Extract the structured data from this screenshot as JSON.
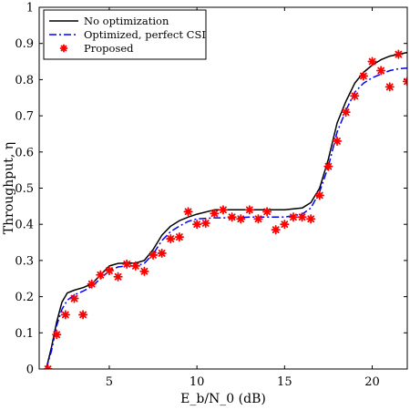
{
  "chart_data": {
    "type": "line",
    "title": "",
    "xlabel": "E_b/N_0 (dB)",
    "ylabel": "Throughput, η",
    "xlim": [
      1,
      22
    ],
    "ylim": [
      0,
      1
    ],
    "x_ticks": [
      5,
      10,
      15,
      20
    ],
    "y_ticks": [
      0,
      0.1,
      0.2,
      0.3,
      0.4,
      0.5,
      0.6,
      0.7,
      0.8,
      0.9,
      1
    ],
    "legend_position": "top-left",
    "grid": false,
    "series": [
      {
        "name": "No optimization",
        "style": "solid",
        "color": "#000000",
        "x": [
          1.4,
          1.7,
          2.0,
          2.3,
          2.6,
          3.0,
          3.5,
          4.0,
          4.5,
          5.0,
          5.5,
          6.0,
          6.5,
          7.0,
          7.5,
          8.0,
          8.5,
          9.0,
          9.5,
          10.0,
          11.0,
          12.0,
          13.0,
          14.0,
          15.0,
          16.0,
          16.5,
          17.0,
          17.5,
          18.0,
          18.5,
          19.0,
          19.5,
          20.0,
          20.5,
          21.0,
          21.5,
          22.0
        ],
        "y": [
          0.0,
          0.06,
          0.13,
          0.185,
          0.21,
          0.218,
          0.225,
          0.235,
          0.26,
          0.285,
          0.292,
          0.293,
          0.293,
          0.3,
          0.33,
          0.37,
          0.395,
          0.41,
          0.42,
          0.428,
          0.44,
          0.44,
          0.44,
          0.44,
          0.44,
          0.445,
          0.46,
          0.5,
          0.58,
          0.68,
          0.74,
          0.79,
          0.82,
          0.84,
          0.855,
          0.865,
          0.87,
          0.875
        ]
      },
      {
        "name": "Optimized, perfect CSI",
        "style": "dashdot",
        "color": "#0000ff",
        "x": [
          1.4,
          1.7,
          2.0,
          2.3,
          2.6,
          3.0,
          3.5,
          4.0,
          4.5,
          5.0,
          5.5,
          6.0,
          6.5,
          7.0,
          7.5,
          8.0,
          8.5,
          9.0,
          9.5,
          10.0,
          11.0,
          12.0,
          13.0,
          14.0,
          15.0,
          16.0,
          16.5,
          17.0,
          17.5,
          18.0,
          18.5,
          19.0,
          19.5,
          20.0,
          20.5,
          21.0,
          21.5,
          22.0
        ],
        "y": [
          0.0,
          0.05,
          0.12,
          0.165,
          0.19,
          0.205,
          0.215,
          0.228,
          0.25,
          0.272,
          0.282,
          0.285,
          0.285,
          0.292,
          0.318,
          0.355,
          0.38,
          0.395,
          0.408,
          0.415,
          0.418,
          0.418,
          0.42,
          0.42,
          0.42,
          0.428,
          0.445,
          0.49,
          0.56,
          0.655,
          0.715,
          0.765,
          0.79,
          0.805,
          0.815,
          0.825,
          0.83,
          0.832
        ]
      },
      {
        "name": "Proposed",
        "style": "markers",
        "color": "#ff0000",
        "x": [
          1.5,
          2.0,
          2.5,
          3.0,
          3.5,
          4.0,
          4.5,
          5.0,
          5.5,
          6.0,
          6.5,
          7.0,
          7.5,
          8.0,
          8.5,
          9.0,
          9.5,
          10.0,
          10.5,
          11.0,
          11.5,
          12.0,
          12.5,
          13.0,
          13.5,
          14.0,
          14.5,
          15.0,
          15.5,
          16.0,
          16.5,
          17.0,
          17.5,
          18.0,
          18.5,
          19.0,
          19.5,
          20.0,
          20.5,
          21.0,
          21.5,
          22.0
        ],
        "y": [
          0.0,
          0.095,
          0.15,
          0.195,
          0.15,
          0.235,
          0.26,
          0.272,
          0.255,
          0.29,
          0.285,
          0.27,
          0.315,
          0.32,
          0.36,
          0.365,
          0.435,
          0.4,
          0.403,
          0.43,
          0.44,
          0.42,
          0.415,
          0.44,
          0.415,
          0.435,
          0.385,
          0.4,
          0.42,
          0.42,
          0.415,
          0.48,
          0.56,
          0.63,
          0.71,
          0.755,
          0.81,
          0.85,
          0.825,
          0.78,
          0.87,
          0.795
        ]
      }
    ]
  }
}
